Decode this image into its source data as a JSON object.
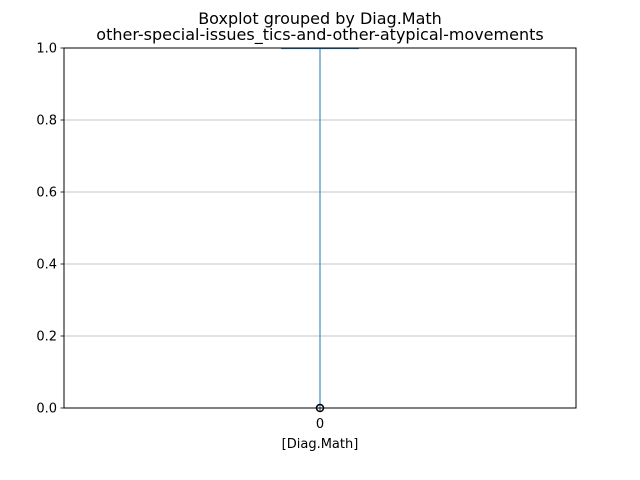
{
  "figure": {
    "suptitle": "Boxplot grouped by Diag.Math",
    "title": "other-special-issues_tics-and-other-atypical-movements"
  },
  "chart_data": {
    "type": "boxplot",
    "title": "other-special-issues_tics-and-other-atypical-movements",
    "suptitle": "Boxplot grouped by Diag.Math",
    "xlabel": "[Diag.Math]",
    "ylabel": "",
    "categories": [
      "0"
    ],
    "ylim": [
      0,
      1
    ],
    "yticks": [
      0.0,
      0.2,
      0.4,
      0.6,
      0.8,
      1.0
    ],
    "ytick_labels": [
      "0.0",
      "0.2",
      "0.4",
      "0.6",
      "0.8",
      "1.0"
    ],
    "grid": true,
    "boxes": [
      {
        "category": "0",
        "min": 0,
        "q1": 1,
        "median": 1,
        "q3": 1,
        "max": 1,
        "outliers": [
          0
        ]
      }
    ],
    "colors": {
      "box": "#1f77b4",
      "median": "#2ca02c",
      "whisker": "#1f77b4",
      "flier": "#000000",
      "grid": "#b0b0b0"
    }
  }
}
